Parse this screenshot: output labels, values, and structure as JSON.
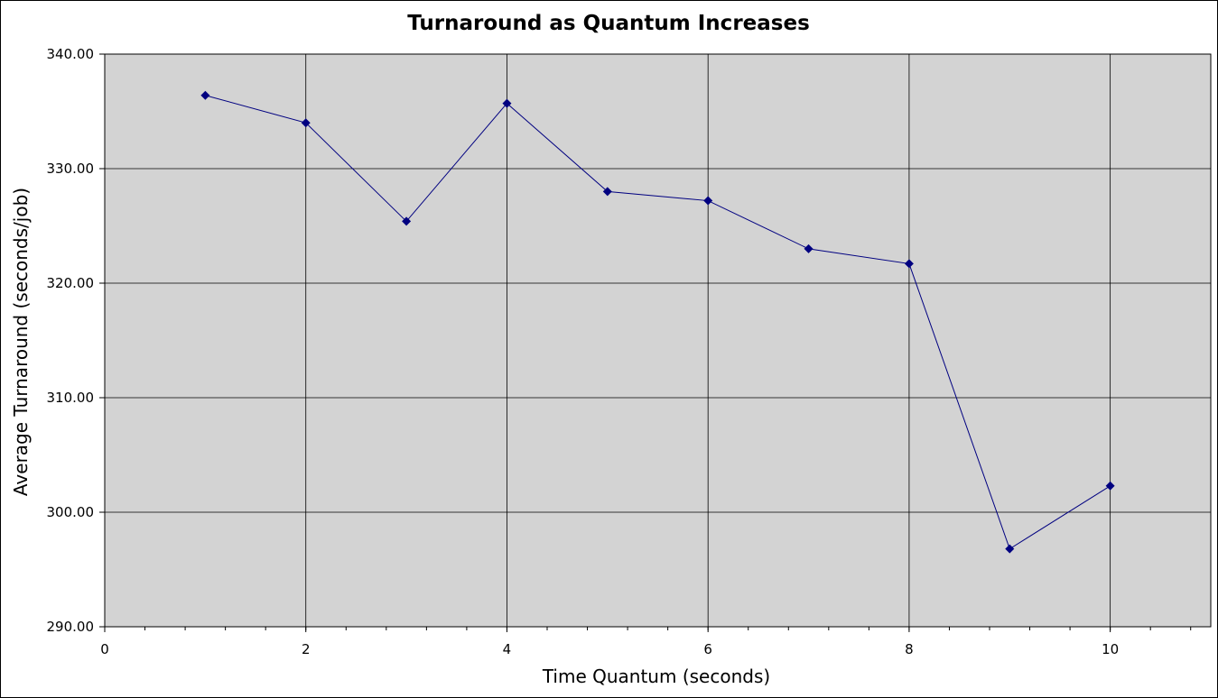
{
  "chart_data": {
    "type": "line",
    "title": "Turnaround as Quantum Increases",
    "xlabel": "Time Quantum (seconds)",
    "ylabel": "Average Turnaround (seconds/job)",
    "xlim": [
      0,
      11
    ],
    "ylim": [
      290,
      340
    ],
    "x_ticks": [
      0,
      2,
      4,
      6,
      8,
      10
    ],
    "x_tick_labels": [
      "0",
      "2",
      "4",
      "6",
      "8",
      "10"
    ],
    "x_minor_step": 0.4,
    "y_ticks": [
      290,
      300,
      310,
      320,
      330,
      340
    ],
    "y_tick_labels": [
      "290.00",
      "300.00",
      "310.00",
      "320.00",
      "330.00",
      "340.00"
    ],
    "grid": true,
    "legend": "none",
    "colors": {
      "line": "#000080",
      "marker": "#000080",
      "plot_background": "#d3d3d3",
      "grid": "#000000"
    },
    "series": [
      {
        "x": [
          1,
          2,
          3,
          4,
          5,
          6,
          7,
          8,
          9,
          10
        ],
        "values": [
          336.4,
          334.0,
          325.4,
          335.7,
          328.0,
          327.2,
          323.0,
          321.7,
          296.8,
          302.3
        ]
      }
    ]
  }
}
